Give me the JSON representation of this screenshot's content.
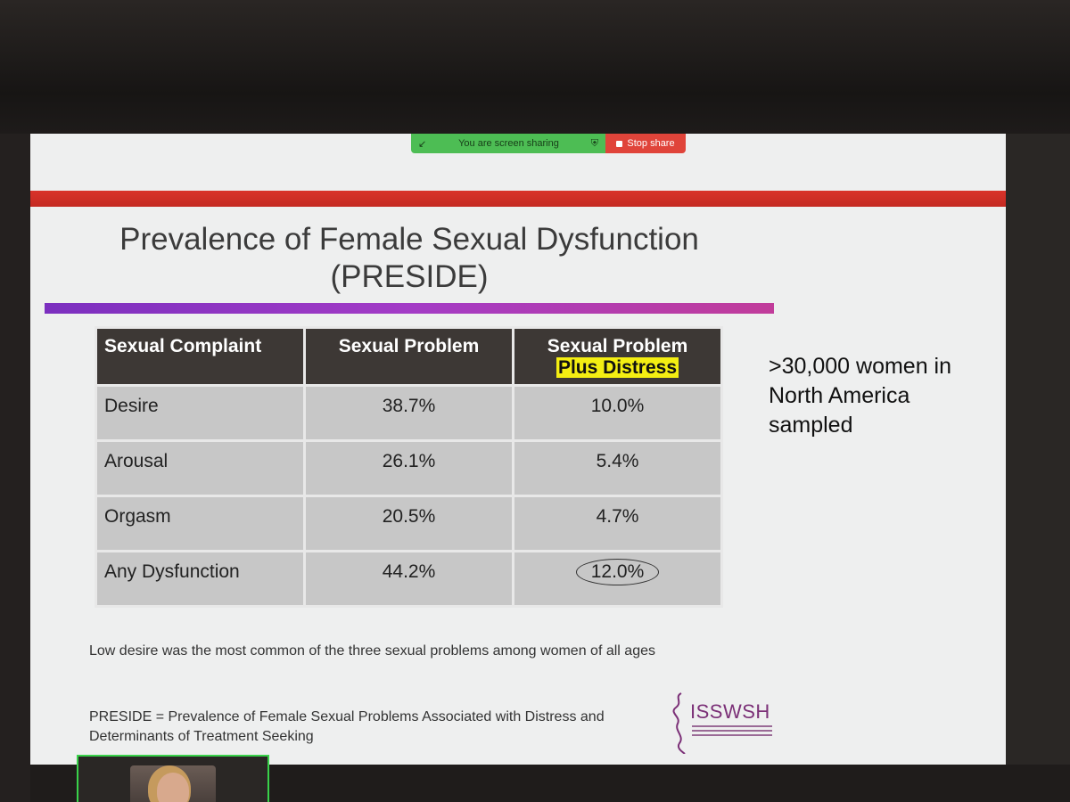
{
  "share_bar": {
    "status_text": "You are screen sharing",
    "stop_label": "Stop share",
    "green": "#4dbd54",
    "red": "#e0443a"
  },
  "slide": {
    "title_line1": "Prevalence of Female Sexual Dysfunction",
    "title_line2": "(PRESIDE)",
    "table": {
      "headers": [
        "Sexual Complaint",
        "Sexual Problem",
        "Sexual Problem",
        "Plus Distress"
      ],
      "rows": [
        {
          "complaint": "Desire",
          "problem": "38.7%",
          "distress": "10.0%"
        },
        {
          "complaint": "Arousal",
          "problem": "26.1%",
          "distress": "5.4%"
        },
        {
          "complaint": "Orgasm",
          "problem": "20.5%",
          "distress": "4.7%"
        },
        {
          "complaint": "Any Dysfunction",
          "problem": "44.2%",
          "distress": "12.0%"
        }
      ]
    },
    "side_note": ">30,000 women in North America sampled",
    "footnote_1": "Low desire was the most common of the three sexual problems among women of all ages",
    "footnote_2": "PRESIDE = Prevalence of Female Sexual Problems Associated with Distress and Determinants of Treatment Seeking",
    "logo_text": "ISSWSH",
    "colors": {
      "red_band": "#d9332a",
      "purple_rule": "#7b2fbf",
      "header_bg": "#3d3835",
      "cell_bg": "#c7c7c7",
      "highlight": "#f4ee12",
      "logo": "#7b3077"
    }
  },
  "thumbnail": {
    "border": "#39d24a"
  }
}
